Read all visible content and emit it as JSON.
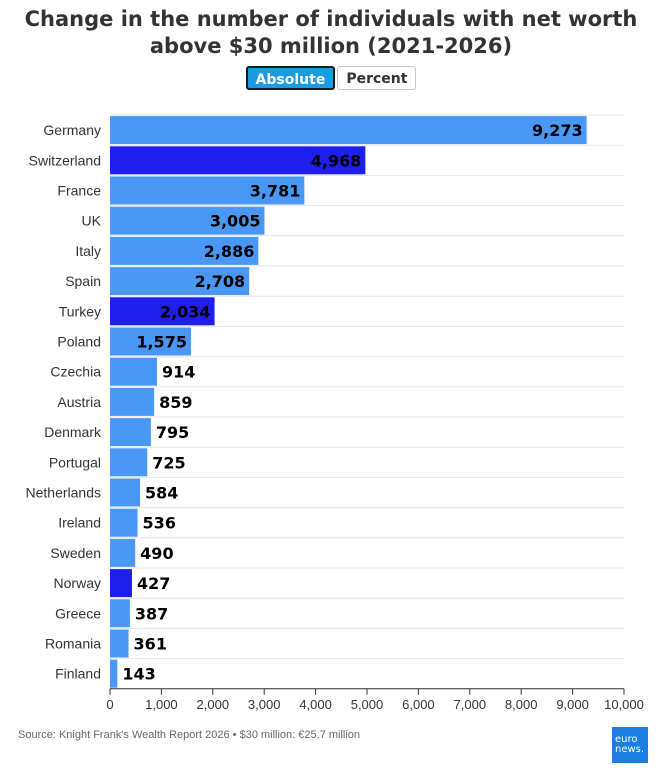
{
  "title_line1": "Change in the number of individuals with net worth",
  "title_line2": "above $30 million (2021-2026)",
  "toggle": {
    "absolute_label": "Absolute",
    "percent_label": "Percent"
  },
  "source": "Source: Knight Frank's Wealth Report 2026 • $30 million: €25.7 million",
  "logo": {
    "line1": "euro",
    "line2": "news."
  },
  "colors": {
    "default": "#4a98f5",
    "highlight": "#1f1fed",
    "grid": "#e6e6e6"
  },
  "chart_data": {
    "type": "bar",
    "orientation": "horizontal",
    "categories": [
      "Germany",
      "Switzerland",
      "France",
      "UK",
      "Italy",
      "Spain",
      "Turkey",
      "Poland",
      "Czechia",
      "Austria",
      "Denmark",
      "Portugal",
      "Netherlands",
      "Ireland",
      "Sweden",
      "Norway",
      "Greece",
      "Romania",
      "Finland"
    ],
    "values": [
      9273,
      4968,
      3781,
      3005,
      2886,
      2708,
      2034,
      1575,
      914,
      859,
      795,
      725,
      584,
      536,
      490,
      427,
      387,
      361,
      143
    ],
    "value_labels": [
      "9,273",
      "4,968",
      "3,781",
      "3,005",
      "2,886",
      "2,708",
      "2,034",
      "1,575",
      "914",
      "859",
      "795",
      "725",
      "584",
      "536",
      "490",
      "427",
      "387",
      "361",
      "143"
    ],
    "highlighted": [
      "Switzerland",
      "Turkey",
      "Norway"
    ],
    "xlim": [
      0,
      10000
    ],
    "xticks": [
      0,
      1000,
      2000,
      3000,
      4000,
      5000,
      6000,
      7000,
      8000,
      9000,
      10000
    ],
    "xtick_labels": [
      "0",
      "1,000",
      "2,000",
      "3,000",
      "4,000",
      "5,000",
      "6,000",
      "7,000",
      "8,000",
      "9,000",
      "10,000"
    ],
    "grid": true
  }
}
